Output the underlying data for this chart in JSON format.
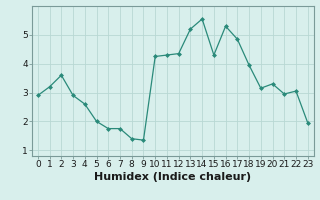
{
  "x": [
    0,
    1,
    2,
    3,
    4,
    5,
    6,
    7,
    8,
    9,
    10,
    11,
    12,
    13,
    14,
    15,
    16,
    17,
    18,
    19,
    20,
    21,
    22,
    23
  ],
  "y": [
    2.9,
    3.2,
    3.6,
    2.9,
    2.6,
    2.0,
    1.75,
    1.75,
    1.4,
    1.35,
    4.25,
    4.3,
    4.35,
    5.2,
    5.55,
    4.3,
    5.3,
    4.85,
    3.95,
    3.15,
    3.3,
    2.95,
    3.05,
    1.95
  ],
  "xlim": [
    -0.5,
    23.5
  ],
  "ylim": [
    0.8,
    6.0
  ],
  "yticks": [
    1,
    2,
    3,
    4,
    5
  ],
  "xticks": [
    0,
    1,
    2,
    3,
    4,
    5,
    6,
    7,
    8,
    9,
    10,
    11,
    12,
    13,
    14,
    15,
    16,
    17,
    18,
    19,
    20,
    21,
    22,
    23
  ],
  "xlabel": "Humidex (Indice chaleur)",
  "line_color": "#2a8a7a",
  "marker_color": "#2a8a7a",
  "bg_color": "#d8efec",
  "grid_color": "#b8d8d4",
  "xlabel_fontsize": 8,
  "tick_fontsize": 6.5,
  "spine_color": "#7a9a98"
}
